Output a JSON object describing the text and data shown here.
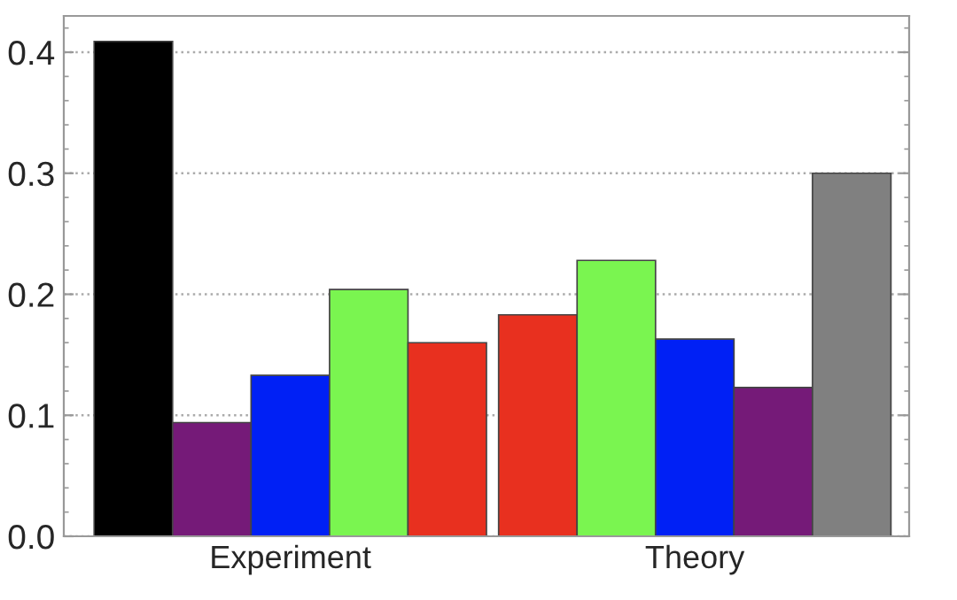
{
  "chart_data": {
    "type": "bar",
    "categories": [
      "Experiment",
      "Theory"
    ],
    "series": [
      {
        "colors": [
          "#000000",
          "#e8301f"
        ],
        "values": [
          0.409,
          0.183
        ]
      },
      {
        "colors": [
          "#751a78",
          "#7af550"
        ],
        "values": [
          0.094,
          0.228
        ]
      },
      {
        "colors": [
          "#0020f5",
          "#0020f5"
        ],
        "values": [
          0.133,
          0.163
        ]
      },
      {
        "colors": [
          "#7af550",
          "#751a78"
        ],
        "values": [
          0.204,
          0.123
        ]
      },
      {
        "colors": [
          "#e8301f",
          "#808080"
        ],
        "values": [
          0.16,
          0.3
        ]
      }
    ],
    "ylim": [
      0,
      0.43
    ],
    "yticks": [
      {
        "value": 0,
        "label": "0.0"
      },
      0.1,
      0.2,
      0.3,
      0.4
    ],
    "grid": "y"
  }
}
